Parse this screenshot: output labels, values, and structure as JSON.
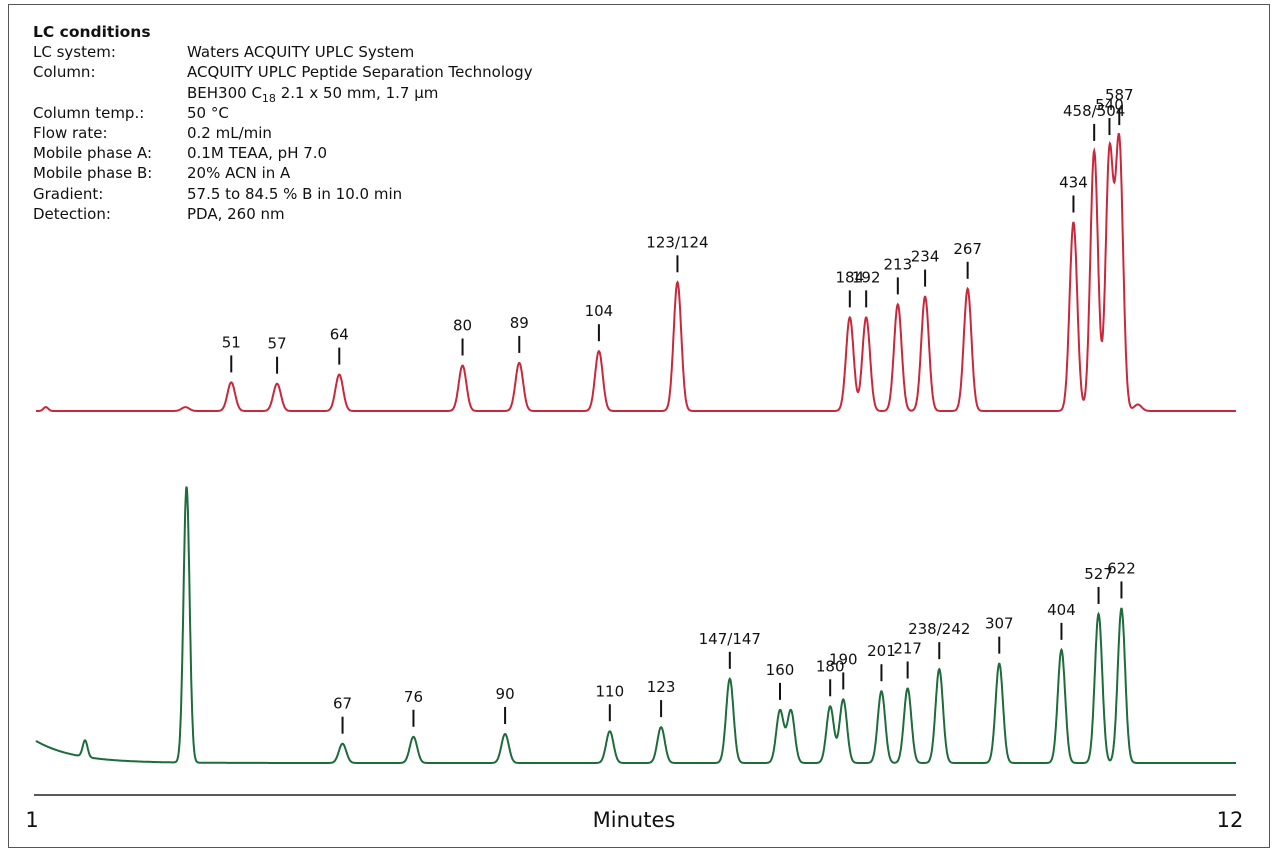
{
  "conditions": {
    "heading": "LC conditions",
    "rows": [
      {
        "label": "LC system:",
        "value": "Waters ACQUITY UPLC System"
      },
      {
        "label": "Column:",
        "value": "ACQUITY UPLC Peptide Separation Technology"
      },
      {
        "label": "",
        "value": "BEH300 C18 2.1 x 50 mm, 1.7 µm"
      },
      {
        "label": "Column temp.:",
        "value": "50 °C"
      },
      {
        "label": "Flow rate:",
        "value": "0.2 mL/min"
      },
      {
        "label": "Mobile phase A:",
        "value": "0.1M TEAA, pH 7.0"
      },
      {
        "label": "Mobile phase B:",
        "value": "20% ACN in A"
      },
      {
        "label": "Gradient:",
        "value": "57.5 to 84.5 % B in 10.0 min"
      },
      {
        "label": "Detection:",
        "value": "PDA, 260 nm"
      }
    ]
  },
  "chart_data": {
    "type": "line",
    "xlabel": "Minutes",
    "xlim": [
      1,
      12
    ],
    "tick_labels": [
      "1",
      "12"
    ],
    "colors": {
      "red": "#c8283c",
      "green": "#1e6b3c",
      "axis": "#222222"
    },
    "series": [
      {
        "color": "#c8283c",
        "baseline": 0,
        "peaks": [
          {
            "t": 1.09,
            "h": 0.03
          },
          {
            "t": 2.37,
            "h": 0.03
          },
          {
            "t": 2.79,
            "h": 0.22,
            "label": "51"
          },
          {
            "t": 3.21,
            "h": 0.21,
            "label": "57"
          },
          {
            "t": 3.78,
            "h": 0.28,
            "label": "64"
          },
          {
            "t": 4.91,
            "h": 0.35,
            "label": "80"
          },
          {
            "t": 5.43,
            "h": 0.37,
            "label": "89"
          },
          {
            "t": 6.16,
            "h": 0.46,
            "label": "104"
          },
          {
            "t": 6.88,
            "h": 0.99,
            "label": "123/124"
          },
          {
            "t": 8.46,
            "h": 0.72,
            "label": "184"
          },
          {
            "t": 8.61,
            "h": 0.72,
            "label": "192"
          },
          {
            "t": 8.9,
            "h": 0.82,
            "label": "213"
          },
          {
            "t": 9.15,
            "h": 0.88,
            "label": "234"
          },
          {
            "t": 9.54,
            "h": 0.94,
            "label": "267"
          },
          {
            "t": 10.51,
            "h": 1.45,
            "label": "434"
          },
          {
            "t": 10.7,
            "h": 2.0,
            "label": "458/504"
          },
          {
            "t": 10.84,
            "h": 1.97,
            "label": "540"
          },
          {
            "t": 10.93,
            "h": 2.05,
            "label": "587"
          },
          {
            "t": 11.1,
            "h": 0.05
          }
        ]
      },
      {
        "color": "#1e6b3c",
        "baseline": 0,
        "peaks": [
          {
            "t": 1.45,
            "h": 0.12
          },
          {
            "t": 2.38,
            "h": 2.0
          },
          {
            "t": 3.81,
            "h": 0.14,
            "label": "67"
          },
          {
            "t": 4.46,
            "h": 0.19,
            "label": "76"
          },
          {
            "t": 5.3,
            "h": 0.21,
            "label": "90"
          },
          {
            "t": 6.26,
            "h": 0.23,
            "label": "110"
          },
          {
            "t": 6.73,
            "h": 0.26,
            "label": "123"
          },
          {
            "t": 7.36,
            "h": 0.61,
            "label": "147/147"
          },
          {
            "t": 7.82,
            "h": 0.38,
            "label": "160"
          },
          {
            "t": 7.92,
            "h": 0.38
          },
          {
            "t": 8.28,
            "h": 0.41,
            "label": "180"
          },
          {
            "t": 8.4,
            "h": 0.46,
            "label": "190"
          },
          {
            "t": 8.75,
            "h": 0.52,
            "label": "201"
          },
          {
            "t": 8.99,
            "h": 0.54,
            "label": "217"
          },
          {
            "t": 9.28,
            "h": 0.68,
            "label": "238/242"
          },
          {
            "t": 9.83,
            "h": 0.72,
            "label": "307"
          },
          {
            "t": 10.4,
            "h": 0.82,
            "label": "404"
          },
          {
            "t": 10.74,
            "h": 1.08,
            "label": "527"
          },
          {
            "t": 10.95,
            "h": 1.12,
            "label": "622"
          }
        ]
      }
    ]
  }
}
